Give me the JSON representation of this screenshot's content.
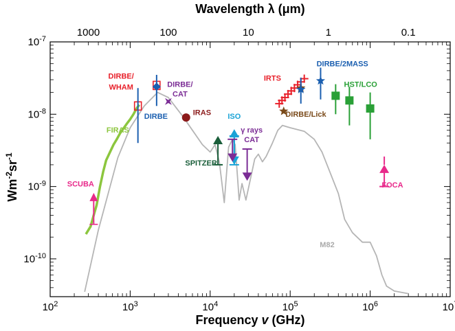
{
  "chart_data": {
    "type": "scatter",
    "xlabel": "Frequency v (GHz)",
    "xlabel_parts": {
      "pre": "Frequency ",
      "sym": "v",
      "post": " (GHz)"
    },
    "x2label": "Wavelength λ (μm)",
    "x2label_parts": {
      "pre": "Wavelength ",
      "sym": "λ",
      "post": " (μm)"
    },
    "ylabel_parts": {
      "w": "Wm",
      "e1": "-2",
      "s": "sr",
      "e2": "-1"
    },
    "x_scale": "log",
    "y_scale": "log",
    "xlim": [
      100,
      10000000
    ],
    "ylim": [
      3e-11,
      1e-07
    ],
    "grid": false,
    "x_ticks": [
      {
        "v": 100,
        "b": "10",
        "e": "2"
      },
      {
        "v": 1000,
        "b": "10",
        "e": "3"
      },
      {
        "v": 10000,
        "b": "10",
        "e": "4"
      },
      {
        "v": 100000,
        "b": "10",
        "e": "5"
      },
      {
        "v": 1000000,
        "b": "10",
        "e": "6"
      },
      {
        "v": 10000000,
        "b": "10",
        "e": "7"
      }
    ],
    "y_ticks": [
      {
        "v": 1e-10,
        "b": "10",
        "e": "-10"
      },
      {
        "v": 1e-09,
        "b": "10",
        "e": "-9"
      },
      {
        "v": 1e-08,
        "b": "10",
        "e": "-8"
      },
      {
        "v": 1e-07,
        "b": "10",
        "e": "-7"
      }
    ],
    "x2_ticks": [
      {
        "label": "1000",
        "um": 1000
      },
      {
        "label": "100",
        "um": 100
      },
      {
        "label": "10",
        "um": 10
      },
      {
        "label": "1",
        "um": 1
      },
      {
        "label": "0.1",
        "um": 0.1
      }
    ],
    "m82_curve": {
      "name": "M82",
      "color": "#b5b5b5",
      "points": [
        [
          270,
          3.5e-11
        ],
        [
          400,
          2.5e-10
        ],
        [
          700,
          2.5e-09
        ],
        [
          1000,
          6.5e-09
        ],
        [
          1500,
          1.3e-08
        ],
        [
          2200,
          2e-08
        ],
        [
          3000,
          1.7e-08
        ],
        [
          4500,
          9.5e-09
        ],
        [
          6000,
          6e-09
        ],
        [
          8000,
          3.8e-09
        ],
        [
          10000,
          3e-09
        ],
        [
          11500,
          3.8e-09
        ],
        [
          13000,
          2.2e-09
        ],
        [
          15000,
          6e-10
        ],
        [
          17000,
          3.5e-09
        ],
        [
          19000,
          4.5e-09
        ],
        [
          20500,
          3.8e-09
        ],
        [
          22000,
          1.3e-09
        ],
        [
          23000,
          6.5e-10
        ],
        [
          25000,
          1.1e-09
        ],
        [
          28000,
          6.5e-10
        ],
        [
          32000,
          1.3e-09
        ],
        [
          36000,
          2.4e-09
        ],
        [
          40000,
          2.8e-09
        ],
        [
          45000,
          2.2e-09
        ],
        [
          50000,
          2.6e-09
        ],
        [
          60000,
          4e-09
        ],
        [
          70000,
          6e-09
        ],
        [
          80000,
          7e-09
        ],
        [
          100000,
          6.5e-09
        ],
        [
          150000,
          5.8e-09
        ],
        [
          200000,
          4.5e-09
        ],
        [
          250000,
          3e-09
        ],
        [
          300000,
          1.8e-09
        ],
        [
          400000,
          8e-10
        ],
        [
          480000,
          3.5e-10
        ],
        [
          600000,
          2.3e-10
        ],
        [
          800000,
          1.7e-10
        ],
        [
          1000000,
          1.7e-10
        ],
        [
          1200000,
          1.1e-10
        ],
        [
          1400000,
          6e-11
        ],
        [
          1600000,
          4.2e-11
        ],
        [
          2000000,
          3.6e-11
        ],
        [
          3000000,
          3.3e-11
        ]
      ]
    },
    "firas_curve": {
      "name": "FIRAS",
      "color": "#8cc63e",
      "points": [
        [
          280,
          2.2e-10
        ],
        [
          320,
          2.8e-10
        ],
        [
          350,
          4e-10
        ],
        [
          380,
          5.5e-10
        ],
        [
          420,
          1e-09
        ],
        [
          460,
          1.6e-09
        ],
        [
          500,
          2.3e-09
        ],
        [
          560,
          3e-09
        ],
        [
          620,
          3.8e-09
        ],
        [
          680,
          4.5e-09
        ],
        [
          750,
          5.5e-09
        ],
        [
          820,
          6.3e-09
        ],
        [
          900,
          7.3e-09
        ],
        [
          1000,
          8.5e-09
        ],
        [
          1100,
          1e-08
        ],
        [
          1200,
          1.2e-08
        ],
        [
          1300,
          1.35e-08
        ]
      ]
    },
    "series": [
      {
        "name": "SCUBA",
        "color": "#e8298a",
        "points": [
          {
            "x": 350,
            "y": 7e-10,
            "err_lo": 3e-10,
            "marker": "triangle-up"
          }
        ]
      },
      {
        "name": "DIRBE/WHAM",
        "color": "#e8202a",
        "points": [
          {
            "x": 1250,
            "y": 1.3e-08,
            "marker": "square-open"
          },
          {
            "x": 2140,
            "y": 2.5e-08,
            "marker": "square-open"
          }
        ]
      },
      {
        "name": "DIRBE",
        "color": "#1b5fb0",
        "points": [
          {
            "x": 1250,
            "y": 1.4e-08,
            "err_lo": 4e-09,
            "err_hi": 2.3e-08,
            "marker": "none"
          },
          {
            "x": 2140,
            "y": 2.4e-08,
            "err_lo": 1.3e-08,
            "err_hi": 3.5e-08,
            "marker": "diamond"
          }
        ]
      },
      {
        "name": "DIRBE/CAT",
        "color": "#7b2c95",
        "points": [
          {
            "x": 3000,
            "y": 1.5e-08,
            "marker": "star4"
          }
        ]
      },
      {
        "name": "IRAS",
        "color": "#8b1a1a",
        "points": [
          {
            "x": 5000,
            "y": 9e-09,
            "marker": "circle"
          }
        ]
      },
      {
        "name": "SPITZER",
        "color": "#1a5e3a",
        "points": [
          {
            "x": 12500,
            "y": 2e-09,
            "limit": "lower",
            "to": 5e-09
          }
        ]
      },
      {
        "name": "ISO",
        "color": "#1aa3d6",
        "points": [
          {
            "x": 20000,
            "y": 2e-09,
            "limit": "lower",
            "to": 6.2e-09
          },
          {
            "x": 20000,
            "y": 5e-09,
            "limit": "upper",
            "to": 2e-09
          }
        ]
      },
      {
        "name": "γ rays CAT",
        "color": "#7b2c95",
        "points": [
          {
            "x": 19000,
            "y": 4.5e-09,
            "limit": "upper",
            "to": 2.2e-09
          },
          {
            "x": 29000,
            "y": 3.3e-09,
            "limit": "upper",
            "to": 1.2e-09
          }
        ]
      },
      {
        "name": "IRTS",
        "color": "#e8202a",
        "points": [
          {
            "x": 73000,
            "y": 1.4e-08,
            "marker": "plus"
          },
          {
            "x": 79000,
            "y": 1.55e-08,
            "marker": "plus"
          },
          {
            "x": 86000,
            "y": 1.7e-08,
            "marker": "plus"
          },
          {
            "x": 94000,
            "y": 1.9e-08,
            "marker": "plus"
          },
          {
            "x": 103000,
            "y": 2.1e-08,
            "marker": "plus"
          },
          {
            "x": 113000,
            "y": 2.3e-08,
            "marker": "plus"
          },
          {
            "x": 124000,
            "y": 2.55e-08,
            "marker": "plus"
          },
          {
            "x": 136000,
            "y": 2.8e-08,
            "marker": "plus"
          },
          {
            "x": 150000,
            "y": 3.1e-08,
            "marker": "plus"
          }
        ]
      },
      {
        "name": "DIRBE/Lick",
        "color": "#7a4a1a",
        "points": [
          {
            "x": 83000,
            "y": 1.1e-08,
            "marker": "star"
          },
          {
            "x": 136000,
            "y": 2.3e-08,
            "marker": "star"
          }
        ]
      },
      {
        "name": "DIRBE/2MASS",
        "color": "#1b5fb0",
        "points": [
          {
            "x": 136000,
            "y": 2.2e-08,
            "err_lo": 1.4e-08,
            "err_hi": 3.2e-08,
            "marker": "star"
          },
          {
            "x": 240000,
            "y": 2.9e-08,
            "err_lo": 1.6e-08,
            "err_hi": 4.4e-08,
            "marker": "star"
          }
        ]
      },
      {
        "name": "HST/LCO",
        "color": "#2aa037",
        "points": [
          {
            "x": 370000,
            "y": 1.8e-08,
            "err_lo": 1e-08,
            "err_hi": 2.6e-08,
            "marker": "square"
          },
          {
            "x": 550000,
            "y": 1.55e-08,
            "err_lo": 7e-09,
            "err_hi": 2.4e-08,
            "marker": "square"
          },
          {
            "x": 1000000,
            "y": 1.2e-08,
            "err_lo": 4.5e-09,
            "err_hi": 2e-08,
            "marker": "square"
          }
        ]
      },
      {
        "name": "FOCA",
        "color": "#e8298a",
        "points": [
          {
            "x": 1500000,
            "y": 1e-09,
            "limit": "lower",
            "to": 2e-09,
            "cap_at": 2.6e-09
          }
        ]
      }
    ],
    "labels": [
      {
        "text": "DIRBE/",
        "x": 770,
        "y": 3.1e-08,
        "color": "#e8202a",
        "anchor": "middle"
      },
      {
        "text": "WHAM",
        "x": 770,
        "y": 2.2e-08,
        "color": "#e8202a",
        "anchor": "middle"
      },
      {
        "text": "DIRBE/",
        "x": 4200,
        "y": 2.4e-08,
        "color": "#7b2c95",
        "anchor": "middle"
      },
      {
        "text": "CAT",
        "x": 4200,
        "y": 1.75e-08,
        "color": "#7b2c95",
        "anchor": "middle"
      },
      {
        "text": "DIRBE",
        "x": 2100,
        "y": 8.6e-09,
        "color": "#1b5fb0",
        "anchor": "middle"
      },
      {
        "text": "IRAS",
        "x": 7900,
        "y": 9.7e-09,
        "color": "#8b1a1a",
        "anchor": "middle"
      },
      {
        "text": "FIRAS",
        "x": 700,
        "y": 5.6e-09,
        "color": "#8cc63e",
        "anchor": "middle"
      },
      {
        "text": "ISO",
        "x": 20000,
        "y": 8.6e-09,
        "color": "#1aa3d6",
        "anchor": "middle"
      },
      {
        "text": "γ rays",
        "x": 33000,
        "y": 5.6e-09,
        "color": "#7b2c95",
        "anchor": "middle"
      },
      {
        "text": "CAT",
        "x": 33000,
        "y": 4.1e-09,
        "color": "#7b2c95",
        "anchor": "middle"
      },
      {
        "text": "SPITZER",
        "x": 7700,
        "y": 1.95e-09,
        "color": "#1a5e3a",
        "anchor": "middle"
      },
      {
        "text": "SCUBA",
        "x": 240,
        "y": 1e-09,
        "color": "#e8298a",
        "anchor": "middle"
      },
      {
        "text": "IRTS",
        "x": 60000,
        "y": 2.9e-08,
        "color": "#e8202a",
        "anchor": "middle"
      },
      {
        "text": "DIRBE/Lick",
        "x": 157000,
        "y": 9.2e-09,
        "color": "#7a4a1a",
        "anchor": "middle"
      },
      {
        "text": "DIRBE/2MASS",
        "x": 450000,
        "y": 4.6e-08,
        "color": "#1b5fb0",
        "anchor": "middle"
      },
      {
        "text": "HST/LCO",
        "x": 760000,
        "y": 2.4e-08,
        "color": "#2aa037",
        "anchor": "middle"
      },
      {
        "text": "FOCA",
        "x": 1900000,
        "y": 9.7e-10,
        "color": "#e8298a",
        "anchor": "middle"
      },
      {
        "text": "M82",
        "x": 290000,
        "y": 1.45e-10,
        "color": "#aaaaaa",
        "anchor": "middle"
      }
    ]
  }
}
